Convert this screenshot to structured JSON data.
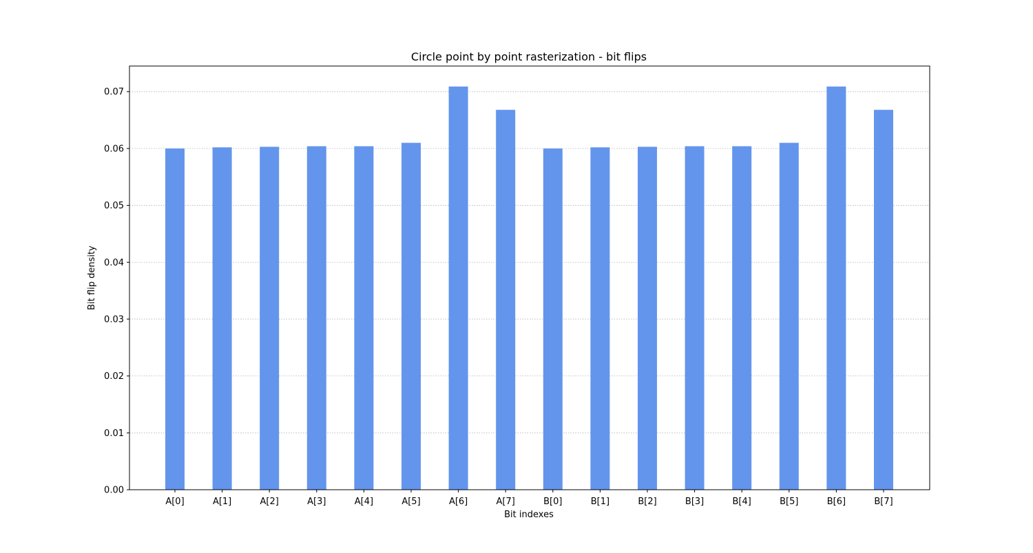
{
  "chart_data": {
    "type": "bar",
    "title": "Circle point by point rasterization - bit flips",
    "xlabel": "Bit indexes",
    "ylabel": "Bit flip density",
    "categories": [
      "A[0]",
      "A[1]",
      "A[2]",
      "A[3]",
      "A[4]",
      "A[5]",
      "A[6]",
      "A[7]",
      "B[0]",
      "B[1]",
      "B[2]",
      "B[3]",
      "B[4]",
      "B[5]",
      "B[6]",
      "B[7]"
    ],
    "values": [
      0.06,
      0.0602,
      0.0603,
      0.0604,
      0.0604,
      0.061,
      0.0709,
      0.0668,
      0.06,
      0.0602,
      0.0603,
      0.0604,
      0.0604,
      0.061,
      0.0709,
      0.0668
    ],
    "ylim": [
      0,
      0.0745
    ],
    "yticks": [
      "0.00",
      "0.01",
      "0.02",
      "0.03",
      "0.04",
      "0.05",
      "0.06",
      "0.07"
    ],
    "grid": "y-dotted",
    "bar_color": "#6495ed",
    "grid_color": "#b0b0b0"
  }
}
